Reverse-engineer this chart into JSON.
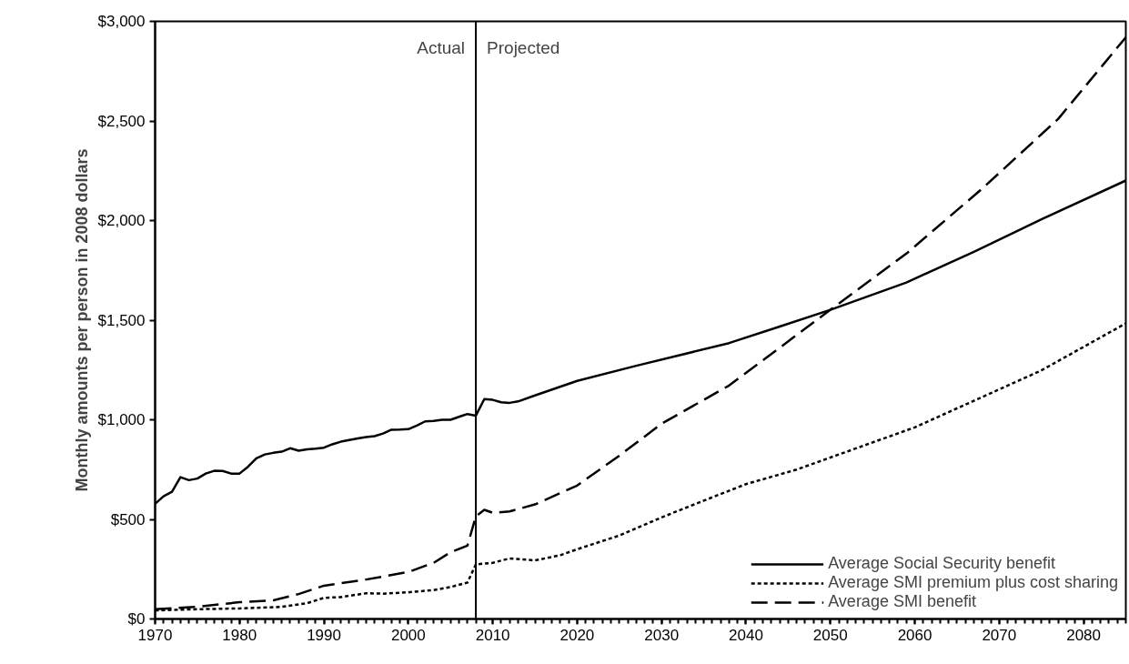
{
  "chart_data": {
    "type": "line",
    "ylabel": "Monthly amounts per person in 2008 dollars",
    "xlim": [
      1970,
      2085
    ],
    "xticks": [
      1970,
      1980,
      1990,
      2000,
      2010,
      2020,
      2030,
      2040,
      2050,
      2060,
      2070,
      2080
    ],
    "ylim": [
      0,
      3000
    ],
    "yticks": [
      {
        "value": 0,
        "label": "$0"
      },
      {
        "value": 500,
        "label": "$500"
      },
      {
        "value": 1000,
        "label": "$1,000"
      },
      {
        "value": 1500,
        "label": "$1,500"
      },
      {
        "value": 2000,
        "label": "$2,000"
      },
      {
        "value": 2500,
        "label": "$2,500"
      },
      {
        "value": 3000,
        "label": "$3,000"
      }
    ],
    "grid": false,
    "legend": "bottom right",
    "marker": "none",
    "ref_lines": [
      {
        "axis": "x",
        "value": 2008,
        "color": "#000000"
      }
    ],
    "annotations": [
      "Actual",
      "Projected"
    ],
    "series": [
      {
        "name": "Average Social Security benefit",
        "color": "#000000",
        "line_style": "solid",
        "x": [
          1970,
          1971,
          1972,
          1973,
          1974,
          1975,
          1976,
          1977,
          1978,
          1979,
          1980,
          1981,
          1982,
          1983,
          1984,
          1985,
          1986,
          1987,
          1988,
          1989,
          1990,
          1991,
          1992,
          1993,
          1994,
          1995,
          1996,
          1997,
          1998,
          1999,
          2000,
          2001,
          2002,
          2003,
          2004,
          2005,
          2006,
          2007,
          2008,
          2009,
          2010,
          2011,
          2012,
          2013,
          2015,
          2020,
          2027,
          2038,
          2044,
          2050,
          2059,
          2067,
          2075,
          2085
        ],
        "values": [
          578,
          616,
          639,
          712,
          697,
          705,
          730,
          744,
          743,
          730,
          730,
          764,
          807,
          826,
          834,
          840,
          857,
          845,
          852,
          855,
          860,
          877,
          890,
          898,
          906,
          913,
          918,
          931,
          950,
          951,
          953,
          971,
          992,
          994,
          1000,
          1000,
          1015,
          1029,
          1021,
          1104,
          1100,
          1088,
          1085,
          1092,
          1122,
          1195,
          1271,
          1385,
          1468,
          1552,
          1689,
          1843,
          2006,
          2201
        ]
      },
      {
        "name": "Average SMI premium plus cost sharing",
        "color": "#000000",
        "line_style": "dotted",
        "x": [
          1970,
          1975,
          1980,
          1985,
          1988,
          1990,
          1992,
          1995,
          1997,
          2000,
          2003,
          2005,
          2007,
          2008,
          2010,
          2012,
          2015,
          2018,
          2020,
          2025,
          2030,
          2035,
          2040,
          2046,
          2060,
          2075,
          2085
        ],
        "values": [
          43,
          49,
          53,
          61,
          79,
          106,
          110,
          129,
          127,
          134,
          145,
          160,
          183,
          274,
          282,
          304,
          294,
          320,
          350,
          419,
          510,
          594,
          677,
          750,
          962,
          1248,
          1484
        ]
      },
      {
        "name": "Average SMI benefit",
        "color": "#000000",
        "line_style": "dashed",
        "x": [
          1970,
          1975,
          1980,
          1984,
          1987,
          1990,
          1995,
          2000,
          2003,
          2005,
          2007,
          2008,
          2009,
          2010,
          2012,
          2015,
          2020,
          2025,
          2030,
          2038,
          2050,
          2059,
          2068,
          2077,
          2085
        ],
        "values": [
          49,
          61,
          84,
          94,
          125,
          167,
          198,
          236,
          282,
          335,
          368,
          515,
          548,
          533,
          540,
          575,
          670,
          820,
          980,
          1172,
          1552,
          1834,
          2161,
          2511,
          2920
        ]
      }
    ]
  }
}
